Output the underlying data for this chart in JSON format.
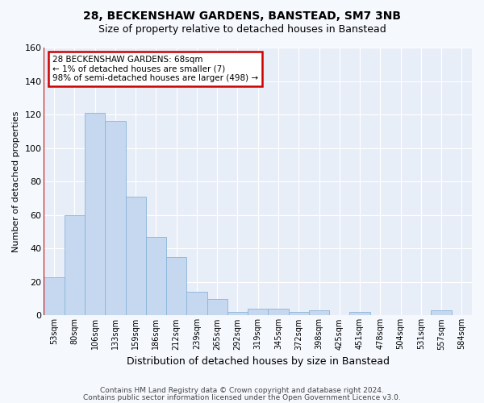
{
  "title1": "28, BECKENSHAW GARDENS, BANSTEAD, SM7 3NB",
  "title2": "Size of property relative to detached houses in Banstead",
  "xlabel": "Distribution of detached houses by size in Banstead",
  "ylabel": "Number of detached properties",
  "categories": [
    "53sqm",
    "80sqm",
    "106sqm",
    "133sqm",
    "159sqm",
    "186sqm",
    "212sqm",
    "239sqm",
    "265sqm",
    "292sqm",
    "319sqm",
    "345sqm",
    "372sqm",
    "398sqm",
    "425sqm",
    "451sqm",
    "478sqm",
    "504sqm",
    "531sqm",
    "557sqm",
    "584sqm"
  ],
  "values": [
    23,
    60,
    121,
    116,
    71,
    47,
    35,
    14,
    10,
    2,
    4,
    4,
    2,
    3,
    0,
    2,
    0,
    0,
    0,
    3,
    0
  ],
  "bar_color": "#c5d8f0",
  "bar_edge_color": "#8ab4d8",
  "annotation_line1": "28 BECKENSHAW GARDENS: 68sqm",
  "annotation_line2": "← 1% of detached houses are smaller (7)",
  "annotation_line3": "98% of semi-detached houses are larger (498) →",
  "annotation_box_color": "#ffffff",
  "annotation_box_edge_color": "#cc0000",
  "vline_color": "#cc0000",
  "ylim": [
    0,
    160
  ],
  "yticks": [
    0,
    20,
    40,
    60,
    80,
    100,
    120,
    140,
    160
  ],
  "footer1": "Contains HM Land Registry data © Crown copyright and database right 2024.",
  "footer2": "Contains public sector information licensed under the Open Government Licence v3.0.",
  "bg_color": "#f5f8fd",
  "plot_bg_color": "#e8eef8",
  "grid_color": "#ffffff",
  "title_fontsize": 10,
  "subtitle_fontsize": 9,
  "ylabel_fontsize": 8,
  "xlabel_fontsize": 9,
  "tick_fontsize": 7,
  "annot_fontsize": 7.5,
  "footer_fontsize": 6.5
}
